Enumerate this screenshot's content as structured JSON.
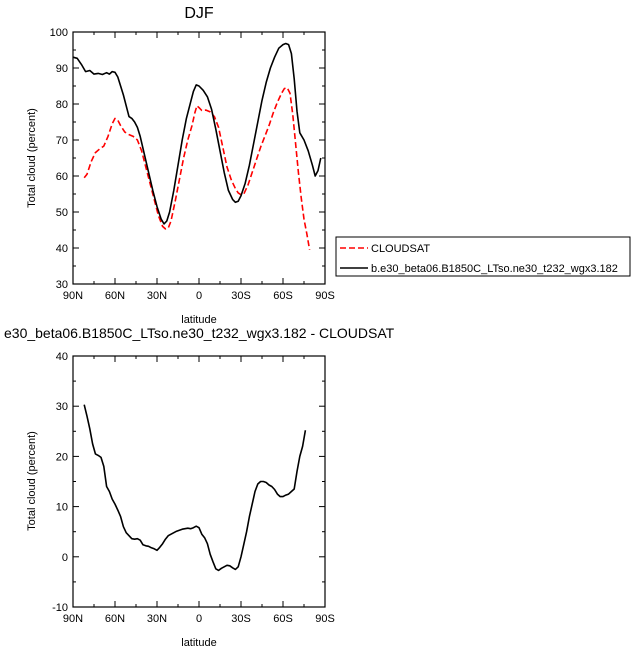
{
  "chart_data": [
    {
      "type": "line",
      "title": "DJF",
      "xlabel": "latitude",
      "ylabel": "Total cloud (percent)",
      "xlim": [
        90,
        -90
      ],
      "ylim": [
        30,
        100
      ],
      "xticks": [
        90,
        60,
        30,
        0,
        -30,
        -60,
        -90
      ],
      "xticklabels": [
        "90N",
        "60N",
        "30N",
        "0",
        "30S",
        "60S",
        "90S"
      ],
      "yticks": [
        30,
        40,
        50,
        60,
        70,
        80,
        90,
        100
      ],
      "yticklabels": [
        "30",
        "40",
        "50",
        "60",
        "70",
        "80",
        "90",
        "100"
      ],
      "legend_position": "right",
      "series": [
        {
          "name": "CLOUDSAT",
          "color": "#ff0000",
          "dash": "dashed",
          "points": [
            [
              82,
              59.5
            ],
            [
              80,
              60.5
            ],
            [
              77,
              64
            ],
            [
              74,
              66.5
            ],
            [
              71,
              67.5
            ],
            [
              68,
              68.3
            ],
            [
              65,
              71
            ],
            [
              62,
              74.5
            ],
            [
              60,
              76
            ],
            [
              58,
              75.5
            ],
            [
              56,
              74
            ],
            [
              53,
              72.2
            ],
            [
              50,
              71.5
            ],
            [
              47,
              71
            ],
            [
              44,
              70
            ],
            [
              41,
              67
            ],
            [
              38,
              62.5
            ],
            [
              35,
              58
            ],
            [
              32,
              53.5
            ],
            [
              29,
              49
            ],
            [
              26,
              46
            ],
            [
              24,
              45.3
            ],
            [
              22,
              45.5
            ],
            [
              20,
              47.5
            ],
            [
              17,
              53
            ],
            [
              14,
              59
            ],
            [
              11,
              65
            ],
            [
              8,
              70
            ],
            [
              5,
              74
            ],
            [
              3,
              77.5
            ],
            [
              1.5,
              79.5
            ],
            [
              0,
              79
            ],
            [
              -2,
              78.2
            ],
            [
              -5,
              78.3
            ],
            [
              -8,
              77.8
            ],
            [
              -11,
              76.5
            ],
            [
              -14,
              73.5
            ],
            [
              -17,
              68
            ],
            [
              -20,
              62.5
            ],
            [
              -23,
              59
            ],
            [
              -26,
              56.5
            ],
            [
              -28,
              55.3
            ],
            [
              -30,
              54.8
            ],
            [
              -32,
              55
            ],
            [
              -35,
              57.5
            ],
            [
              -38,
              61
            ],
            [
              -41,
              64.5
            ],
            [
              -44,
              68
            ],
            [
              -47,
              71
            ],
            [
              -50,
              74
            ],
            [
              -53,
              77.5
            ],
            [
              -56,
              80.5
            ],
            [
              -59,
              83
            ],
            [
              -61,
              84.3
            ],
            [
              -63,
              84.5
            ],
            [
              -65,
              83
            ],
            [
              -67,
              77
            ],
            [
              -69,
              69
            ],
            [
              -71,
              61
            ],
            [
              -73,
              54
            ],
            [
              -75,
              48
            ],
            [
              -77,
              44
            ],
            [
              -79,
              39.5
            ]
          ]
        },
        {
          "name": "b.e30_beta06.B1850C_LTso.ne30_t232_wgx3.182",
          "color": "#000000",
          "dash": "solid",
          "points": [
            [
              90,
              93
            ],
            [
              87,
              92.7
            ],
            [
              84,
              91
            ],
            [
              81,
              89
            ],
            [
              78,
              89.3
            ],
            [
              75,
              88.3
            ],
            [
              72,
              88.5
            ],
            [
              69,
              88.2
            ],
            [
              66,
              88.7
            ],
            [
              64,
              88.3
            ],
            [
              62,
              89
            ],
            [
              60,
              88.8
            ],
            [
              58,
              87.5
            ],
            [
              56,
              85
            ],
            [
              54,
              82.5
            ],
            [
              52,
              79.5
            ],
            [
              50,
              76.5
            ],
            [
              48,
              76
            ],
            [
              46,
              75
            ],
            [
              44,
              73.5
            ],
            [
              42,
              71
            ],
            [
              39,
              66
            ],
            [
              36,
              61
            ],
            [
              33,
              56
            ],
            [
              30,
              51.5
            ],
            [
              27,
              48
            ],
            [
              25,
              46.7
            ],
            [
              23,
              47.5
            ],
            [
              21,
              50
            ],
            [
              18,
              56
            ],
            [
              15,
              63
            ],
            [
              12,
              70
            ],
            [
              9,
              76
            ],
            [
              6,
              80.5
            ],
            [
              4,
              83.5
            ],
            [
              2,
              85.3
            ],
            [
              0,
              85
            ],
            [
              -3,
              83.8
            ],
            [
              -6,
              82
            ],
            [
              -9,
              78.5
            ],
            [
              -12,
              73
            ],
            [
              -15,
              67
            ],
            [
              -18,
              61
            ],
            [
              -21,
              56
            ],
            [
              -24,
              53.5
            ],
            [
              -26,
              52.7
            ],
            [
              -28,
              53
            ],
            [
              -30,
              54.5
            ],
            [
              -33,
              58
            ],
            [
              -36,
              63
            ],
            [
              -39,
              69
            ],
            [
              -42,
              75
            ],
            [
              -45,
              81
            ],
            [
              -48,
              86
            ],
            [
              -51,
              90
            ],
            [
              -54,
              93
            ],
            [
              -57,
              95.5
            ],
            [
              -60,
              96.5
            ],
            [
              -62,
              96.8
            ],
            [
              -64,
              96.5
            ],
            [
              -66,
              94
            ],
            [
              -68,
              87
            ],
            [
              -70,
              78
            ],
            [
              -72,
              72
            ],
            [
              -75,
              70
            ],
            [
              -78,
              67
            ],
            [
              -81,
              63
            ],
            [
              -83,
              60
            ],
            [
              -85,
              61.5
            ],
            [
              -87,
              65
            ]
          ]
        }
      ]
    },
    {
      "type": "line",
      "title": "e30_beta06.B1850C_LTso.ne30_t232_wgx3.182 - CLOUDSAT",
      "xlabel": "latitude",
      "ylabel": "Total cloud (percent)",
      "xlim": [
        90,
        -90
      ],
      "ylim": [
        -10,
        40
      ],
      "xticks": [
        90,
        60,
        30,
        0,
        -30,
        -60,
        -90
      ],
      "xticklabels": [
        "90N",
        "60N",
        "30N",
        "0",
        "30S",
        "60S",
        "90S"
      ],
      "yticks": [
        -10,
        0,
        10,
        20,
        30,
        40
      ],
      "yticklabels": [
        "-10",
        "0",
        "10",
        "20",
        "30",
        "40"
      ],
      "series": [
        {
          "color": "#000000",
          "dash": "solid",
          "points": [
            [
              82,
              30.3
            ],
            [
              80,
              28
            ],
            [
              78,
              25.5
            ],
            [
              76,
              22.5
            ],
            [
              74,
              20.5
            ],
            [
              72,
              20.2
            ],
            [
              70,
              19.8
            ],
            [
              68,
              18
            ],
            [
              66,
              14
            ],
            [
              64,
              13
            ],
            [
              62,
              11.5
            ],
            [
              60,
              10.5
            ],
            [
              58,
              9.3
            ],
            [
              56,
              8
            ],
            [
              54,
              6
            ],
            [
              52,
              4.8
            ],
            [
              50,
              4.2
            ],
            [
              48,
              3.6
            ],
            [
              46,
              3.5
            ],
            [
              44,
              3.6
            ],
            [
              42,
              3.3
            ],
            [
              40,
              2.4
            ],
            [
              38,
              2.2
            ],
            [
              36,
              2.1
            ],
            [
              34,
              1.8
            ],
            [
              32,
              1.6
            ],
            [
              30,
              1.3
            ],
            [
              28,
              1.9
            ],
            [
              26,
              2.6
            ],
            [
              24,
              3.5
            ],
            [
              22,
              4.2
            ],
            [
              20,
              4.5
            ],
            [
              18,
              4.8
            ],
            [
              16,
              5.1
            ],
            [
              14,
              5.3
            ],
            [
              12,
              5.5
            ],
            [
              10,
              5.6
            ],
            [
              8,
              5.7
            ],
            [
              6,
              5.6
            ],
            [
              4,
              5.8
            ],
            [
              2,
              6.1
            ],
            [
              0,
              5.8
            ],
            [
              -2,
              4.5
            ],
            [
              -4,
              3.8
            ],
            [
              -6,
              2.6
            ],
            [
              -8,
              0.5
            ],
            [
              -10,
              -1
            ],
            [
              -12,
              -2.4
            ],
            [
              -14,
              -2.7
            ],
            [
              -16,
              -2.3
            ],
            [
              -18,
              -2
            ],
            [
              -20,
              -1.7
            ],
            [
              -22,
              -1.8
            ],
            [
              -24,
              -2.2
            ],
            [
              -26,
              -2.5
            ],
            [
              -28,
              -2
            ],
            [
              -30,
              0
            ],
            [
              -32,
              2.5
            ],
            [
              -34,
              5
            ],
            [
              -36,
              8
            ],
            [
              -38,
              10.5
            ],
            [
              -40,
              13
            ],
            [
              -42,
              14.5
            ],
            [
              -44,
              15
            ],
            [
              -46,
              15
            ],
            [
              -48,
              14.8
            ],
            [
              -50,
              14.3
            ],
            [
              -52,
              14
            ],
            [
              -54,
              13.4
            ],
            [
              -56,
              12.5
            ],
            [
              -58,
              12
            ],
            [
              -60,
              12
            ],
            [
              -62,
              12.3
            ],
            [
              -64,
              12.5
            ],
            [
              -66,
              13
            ],
            [
              -68,
              13.5
            ],
            [
              -70,
              17
            ],
            [
              -72,
              20
            ],
            [
              -74,
              22
            ],
            [
              -76,
              25.2
            ]
          ]
        }
      ]
    }
  ]
}
